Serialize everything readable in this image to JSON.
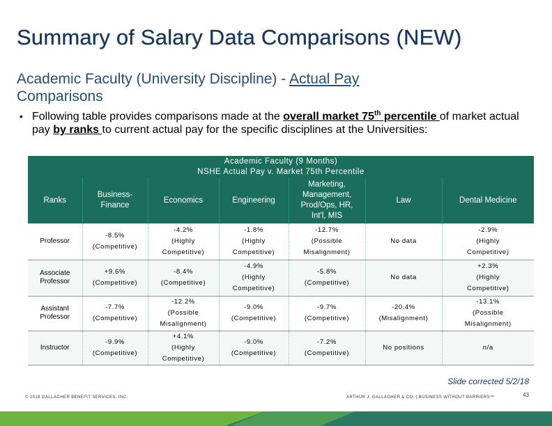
{
  "title": "Summary of Salary Data Comparisons (NEW)",
  "subtitle": {
    "prefix": "Academic Faculty (University Discipline) - ",
    "link": "Actual Pay",
    "line2": "Comparisons"
  },
  "bullet": {
    "symbol": "•",
    "t1": "Following table provides comparisons made at the ",
    "b1": "overall market 75",
    "b1_sup": "th",
    "b1_rest": " percentile ",
    "t2": "of market actual pay ",
    "b2": "by ranks ",
    "t3": "to current actual pay for the specific disciplines at the Universities:"
  },
  "table": {
    "heading_line1": "Academic Faculty (9 Months)",
    "heading_line2": "NSHE Actual Pay v. Market 75th Percentile",
    "columns": [
      [
        "Ranks"
      ],
      [
        "Business-",
        "Finance"
      ],
      [
        "Economics"
      ],
      [
        "Engineering"
      ],
      [
        "Marketing,",
        "Management,",
        "Prod/Ops, HR,",
        "Int'l, MIS"
      ],
      [
        "Law"
      ],
      [
        "Dental Medicine"
      ]
    ],
    "rows": [
      {
        "rank": [
          "Professor"
        ],
        "cells": [
          {
            "v": "-8.5%",
            "n": [
              "(Competitive)"
            ]
          },
          {
            "v": "-4.2%",
            "n": [
              "(Highly",
              "Competitive)"
            ]
          },
          {
            "v": "-1.8%",
            "n": [
              "(Highly",
              "Competitive)"
            ]
          },
          {
            "v": "-12.7%",
            "n": [
              "(Possible",
              "Misalignment)"
            ]
          },
          {
            "v": "No data",
            "n": []
          },
          {
            "v": "-2.9%",
            "n": [
              "(Highly",
              "Competitive)"
            ]
          }
        ]
      },
      {
        "rank": [
          "Associate",
          "Professor"
        ],
        "cells": [
          {
            "v": "+9.6%",
            "n": [
              "(Competitive)"
            ]
          },
          {
            "v": "-8.4%",
            "n": [
              "(Competitive)"
            ]
          },
          {
            "v": "-4.9%",
            "n": [
              "(Highly",
              "Competitive)"
            ]
          },
          {
            "v": "-5.8%",
            "n": [
              "(Competitive)"
            ]
          },
          {
            "v": "No data",
            "n": []
          },
          {
            "v": "+2.3%",
            "n": [
              "(Highly",
              "Competitive)"
            ]
          }
        ]
      },
      {
        "rank": [
          "Assistant",
          "Professor"
        ],
        "cells": [
          {
            "v": "-7.7%",
            "n": [
              "(Competitive)"
            ]
          },
          {
            "v": "-12.2%",
            "n": [
              "(Possible",
              "Misalignment)"
            ]
          },
          {
            "v": "-9.0%",
            "n": [
              "(Competitive)"
            ]
          },
          {
            "v": "-9.7%",
            "n": [
              "(Competitive)"
            ]
          },
          {
            "v": "-20.4%",
            "n": [
              "(Misalignment)"
            ]
          },
          {
            "v": "-13.1%",
            "n": [
              "(Possible",
              "Misalignment)"
            ]
          }
        ]
      },
      {
        "rank": [
          "Instructor"
        ],
        "cells": [
          {
            "v": "-9.9%",
            "n": [
              "(Competitive)"
            ]
          },
          {
            "v": "+4.1%",
            "n": [
              "(Highly",
              "Competitive)"
            ]
          },
          {
            "v": "-9.0%",
            "n": [
              "(Competitive)"
            ]
          },
          {
            "v": "-7.2%",
            "n": [
              "(Competitive)"
            ]
          },
          {
            "v": "No positions",
            "n": []
          },
          {
            "v": "n/a",
            "n": []
          }
        ]
      }
    ]
  },
  "slide_note": "Slide corrected 5/2/18",
  "footer": {
    "left": "© 2018 GALLAGHER BENEFIT SERVICES, INC.",
    "right": "ARTHUR J. GALLAGHER & CO. | BUSINESS WITHOUT BARRIERS™",
    "page": "43"
  },
  "colors": {
    "title": "#17365d",
    "table_header": "#1a6e5a",
    "bar_dark": "#2a7a63",
    "bar_light": "#6db33f"
  }
}
